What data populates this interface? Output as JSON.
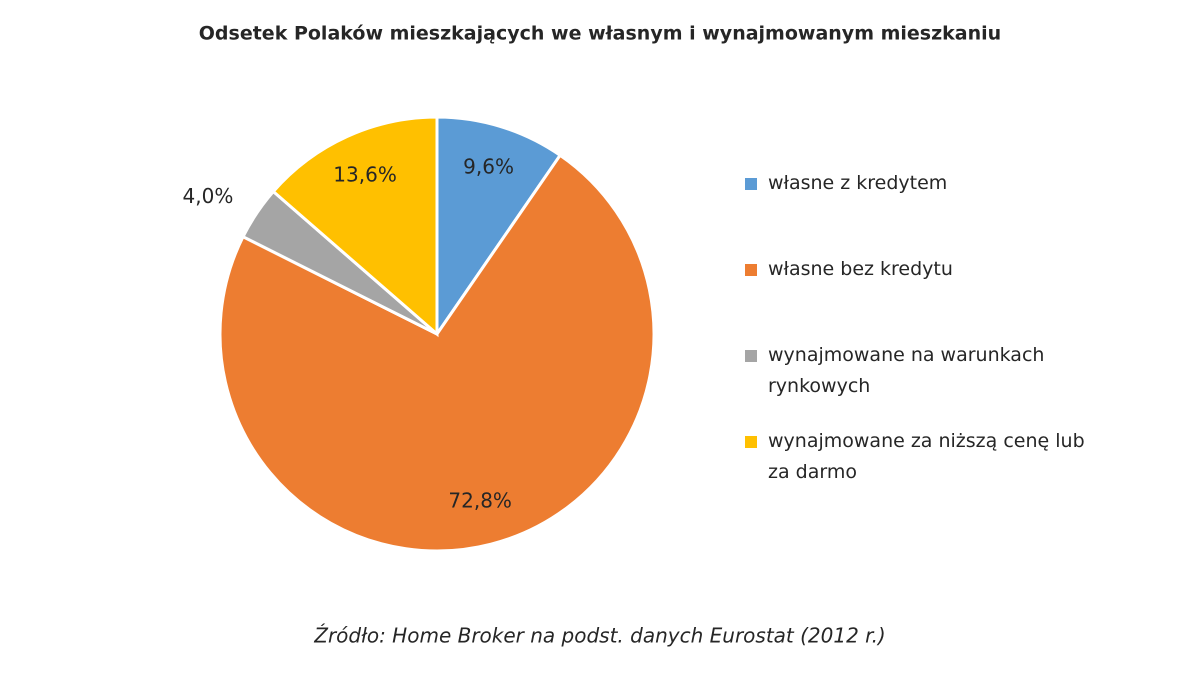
{
  "chart_data": {
    "type": "pie",
    "title": "Odsetek Polaków mieszkających we własnym i wynajmowanym mieszkaniu",
    "categories": [
      "własne z kredytem",
      "własne bez kredytu",
      "wynajmowane na warunkach rynkowych",
      "wynajmowane za niższą cenę lub za darmo"
    ],
    "values": [
      9.6,
      72.8,
      4.0,
      13.6
    ],
    "value_labels": [
      "9,6%",
      "72,8%",
      "4,0%",
      "13,6%"
    ],
    "colors": [
      "#5b9bd5",
      "#ed7d31",
      "#a5a5a5",
      "#ffc000"
    ],
    "source": "Źródło: Home Broker na podst. danych Eurostat (2012 r.)"
  }
}
